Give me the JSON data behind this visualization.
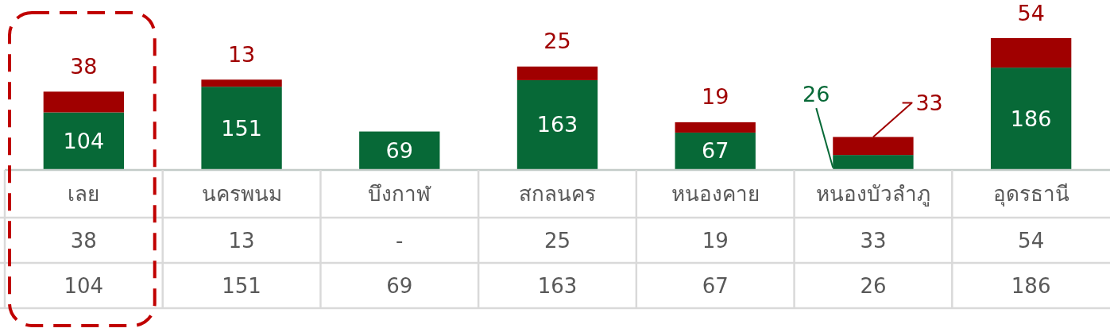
{
  "chart_data": {
    "type": "bar",
    "stacked": true,
    "categories": [
      "เลย",
      "นครพนม",
      "บึงกาฬ",
      "สกลนคร",
      "หนองคาย",
      "หนองบัวลำภู",
      "อุดรธานี"
    ],
    "series": [
      {
        "color": "#076937",
        "values": [
          104,
          151,
          69,
          163,
          67,
          26,
          186
        ],
        "value_labels": [
          "104",
          "151",
          "69",
          "163",
          "67",
          "26",
          "186"
        ]
      },
      {
        "color": "#a00000",
        "values": [
          38,
          13,
          null,
          25,
          19,
          33,
          54
        ],
        "value_labels": [
          "38",
          "13",
          "-",
          "25",
          "19",
          "33",
          "54"
        ]
      }
    ]
  }
}
